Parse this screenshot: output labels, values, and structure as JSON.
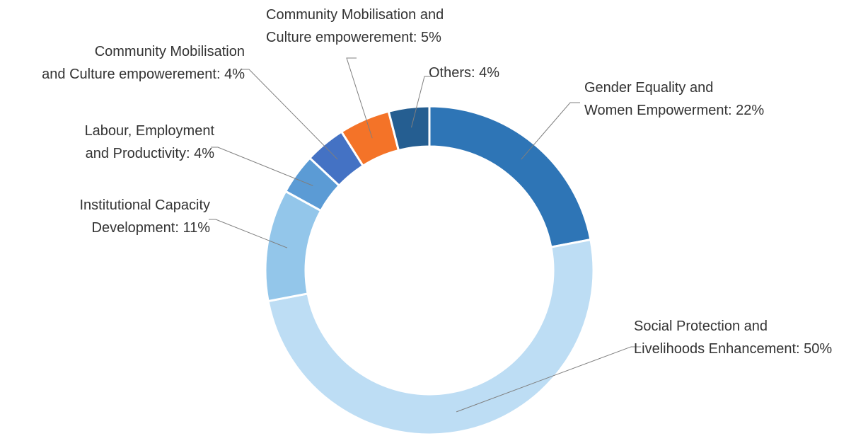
{
  "chart_data": {
    "type": "donut",
    "categories": [
      "Gender Equality and Women Empowerment",
      "Social Protection and Livelihoods Enhancement",
      "Institutional Capacity Development",
      "Labour, Employment and Productivity",
      "Community Mobilisation and Culture empowerement",
      "Community Mobilisation and Culture empowerement",
      "Others"
    ],
    "values": [
      22,
      50,
      11,
      4,
      4,
      5,
      4
    ],
    "labels": [
      [
        "Gender Equality and",
        "Women Empowerment: 22%"
      ],
      [
        "Social Protection and",
        "Livelihoods Enhancement: 50%"
      ],
      [
        "Institutional Capacity",
        "Development: 11%"
      ],
      [
        "Labour, Employment",
        "and Productivity: 4%"
      ],
      [
        "Community Mobilisation",
        "and Culture empowerement: 4%"
      ],
      [
        "Community Mobilisation and",
        "Culture empowerement: 5%"
      ],
      [
        "Others: 4%"
      ]
    ],
    "colors": [
      "#2e75b6",
      "#bdddf4",
      "#93c6ea",
      "#5b9bd5",
      "#4472c4",
      "#f47328",
      "#255e91"
    ]
  }
}
